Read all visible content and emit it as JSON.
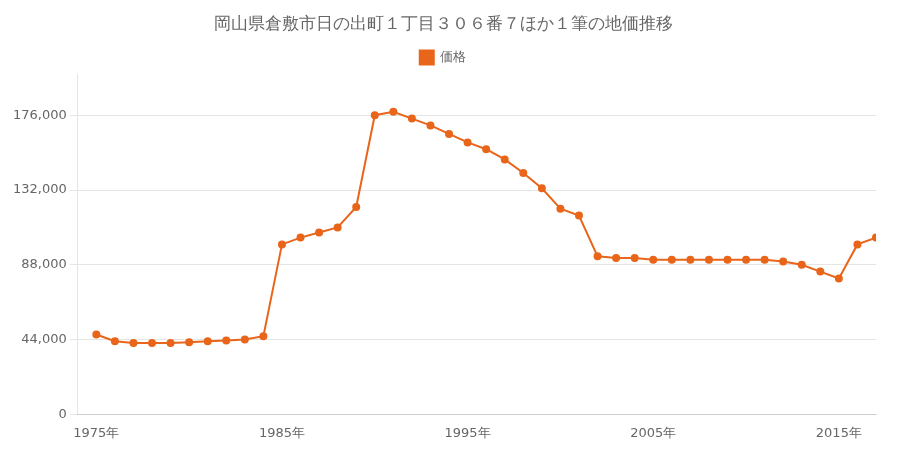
{
  "chart_data": {
    "type": "line",
    "title": "岡山県倉敷市日の出町１丁目３０６番７ほか１筆の地価推移",
    "x": [
      1975,
      1976,
      1977,
      1978,
      1979,
      1980,
      1981,
      1982,
      1983,
      1984,
      1985,
      1986,
      1987,
      1988,
      1989,
      1990,
      1991,
      1992,
      1993,
      1994,
      1995,
      1996,
      1997,
      1998,
      1999,
      2000,
      2001,
      2002,
      2003,
      2004,
      2005,
      2006,
      2007,
      2008,
      2009,
      2010,
      2011,
      2012,
      2013,
      2014,
      2015,
      2016,
      2017
    ],
    "series": [
      {
        "name": "価格",
        "color": "#e8651a",
        "marker": "circle",
        "values": [
          47000,
          43000,
          42000,
          42000,
          42000,
          42500,
          43000,
          43500,
          44000,
          46000,
          100000,
          104000,
          107000,
          110000,
          122000,
          176000,
          178000,
          174000,
          170000,
          165000,
          160000,
          156000,
          150000,
          142000,
          133000,
          121000,
          117000,
          93000,
          92000,
          92000,
          91000,
          91000,
          91000,
          91000,
          91000,
          91000,
          91000,
          90000,
          88000,
          84000,
          80000,
          100000,
          104000
        ]
      }
    ],
    "xlim": [
      1974,
      2017
    ],
    "xticks": [
      {
        "value": 1975,
        "label": "1975年"
      },
      {
        "value": 1985,
        "label": "1985年"
      },
      {
        "value": 1995,
        "label": "1995年"
      },
      {
        "value": 2005,
        "label": "2005年"
      },
      {
        "value": 2015,
        "label": "2015年"
      }
    ],
    "ylim": [
      0,
      200000
    ],
    "yticks": [
      0,
      {
        "value": 44000,
        "label": "44,000"
      },
      {
        "value": 88000,
        "label": "88,000"
      },
      {
        "value": 132000,
        "label": "132,000"
      },
      {
        "value": 176000,
        "label": "176,000"
      }
    ],
    "grid": "y",
    "legend": "top"
  }
}
